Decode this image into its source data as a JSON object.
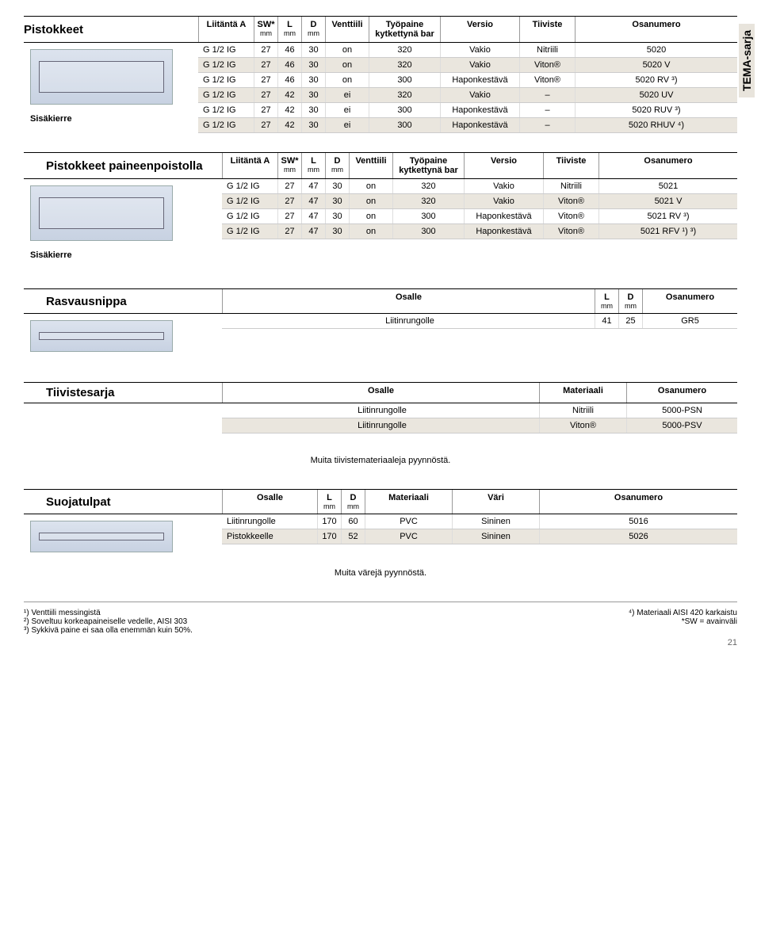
{
  "side_label": "TEMA-sarja",
  "page_number": "21",
  "pistokkeet": {
    "title": "Pistokkeet",
    "caption": "Sisäkierre",
    "headers": {
      "li": "Liitäntä A",
      "sw": "SW*",
      "l": "L",
      "d": "D",
      "vt": "Venttiili",
      "tp": "Työpaine kytkettynä bar",
      "ver": "Versio",
      "ti": "Tiiviste",
      "os": "Osanumero",
      "mm": "mm"
    },
    "rows": [
      {
        "li": "G 1/2 IG",
        "sw": "27",
        "l": "46",
        "d": "30",
        "vt": "on",
        "tp": "320",
        "ver": "Vakio",
        "ti": "Nitriili",
        "os": "5020"
      },
      {
        "li": "G 1/2 IG",
        "sw": "27",
        "l": "46",
        "d": "30",
        "vt": "on",
        "tp": "320",
        "ver": "Vakio",
        "ti": "Viton®",
        "os": "5020 V"
      },
      {
        "li": "G 1/2 IG",
        "sw": "27",
        "l": "46",
        "d": "30",
        "vt": "on",
        "tp": "300",
        "ver": "Haponkestävä",
        "ti": "Viton®",
        "os": "5020 RV ³)"
      },
      {
        "li": "G 1/2 IG",
        "sw": "27",
        "l": "42",
        "d": "30",
        "vt": "ei",
        "tp": "320",
        "ver": "Vakio",
        "ti": "–",
        "os": "5020 UV"
      },
      {
        "li": "G 1/2 IG",
        "sw": "27",
        "l": "42",
        "d": "30",
        "vt": "ei",
        "tp": "300",
        "ver": "Haponkestävä",
        "ti": "–",
        "os": "5020 RUV ³)"
      },
      {
        "li": "G 1/2 IG",
        "sw": "27",
        "l": "42",
        "d": "30",
        "vt": "ei",
        "tp": "300",
        "ver": "Haponkestävä",
        "ti": "–",
        "os": "5020 RHUV ⁴)"
      }
    ]
  },
  "paineenpoistolla": {
    "title": "Pistokkeet paineenpoistolla",
    "caption": "Sisäkierre",
    "rows": [
      {
        "li": "G 1/2 IG",
        "sw": "27",
        "l": "47",
        "d": "30",
        "vt": "on",
        "tp": "320",
        "ver": "Vakio",
        "ti": "Nitriili",
        "os": "5021"
      },
      {
        "li": "G 1/2 IG",
        "sw": "27",
        "l": "47",
        "d": "30",
        "vt": "on",
        "tp": "320",
        "ver": "Vakio",
        "ti": "Viton®",
        "os": "5021 V"
      },
      {
        "li": "G 1/2 IG",
        "sw": "27",
        "l": "47",
        "d": "30",
        "vt": "on",
        "tp": "300",
        "ver": "Haponkestävä",
        "ti": "Viton®",
        "os": "5021 RV ³)"
      },
      {
        "li": "G 1/2 IG",
        "sw": "27",
        "l": "47",
        "d": "30",
        "vt": "on",
        "tp": "300",
        "ver": "Haponkestävä",
        "ti": "Viton®",
        "os": "5021 RFV ¹) ³)"
      }
    ]
  },
  "rasvausnippa": {
    "title": "Rasvausnippa",
    "headers": {
      "os_for": "Osalle",
      "l": "L",
      "d": "D",
      "os": "Osanumero",
      "mm": "mm"
    },
    "rows": [
      {
        "for": "Liitinrungolle",
        "l": "41",
        "d": "25",
        "os": "GR5"
      }
    ]
  },
  "tiivistesarja": {
    "title": "Tiivistesarja",
    "headers": {
      "os_for": "Osalle",
      "mat": "Materiaali",
      "os": "Osanumero"
    },
    "rows": [
      {
        "for": "Liitinrungolle",
        "mat": "Nitriili",
        "os": "5000-PSN"
      },
      {
        "for": "Liitinrungolle",
        "mat": "Viton®",
        "os": "5000-PSV"
      }
    ],
    "note": "Muita tiivistemateriaaleja pyynnöstä."
  },
  "suojatulpat": {
    "title": "Suojatulpat",
    "headers": {
      "os_for": "Osalle",
      "l": "L",
      "d": "D",
      "mat": "Materiaali",
      "vari": "Väri",
      "os": "Osanumero",
      "mm": "mm"
    },
    "rows": [
      {
        "for": "Liitinrungolle",
        "l": "170",
        "d": "60",
        "mat": "PVC",
        "vari": "Sininen",
        "os": "5016"
      },
      {
        "for": "Pistokkeelle",
        "l": "170",
        "d": "52",
        "mat": "PVC",
        "vari": "Sininen",
        "os": "5026"
      }
    ],
    "note": "Muita värejä pyynnöstä."
  },
  "footnotes": {
    "left": [
      "¹) Venttiili messingistä",
      "²) Soveltuu korkeapaineiselle vedelle, AISI 303",
      "³) Sykkivä paine ei saa olla enemmän kuin 50%."
    ],
    "right": [
      "⁴) Materiaali AISI 420 karkaistu",
      "*SW = avainväli"
    ]
  }
}
